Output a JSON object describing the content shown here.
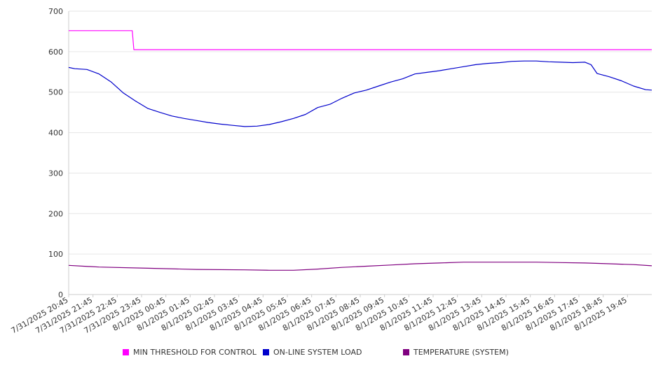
{
  "chart_data": {
    "type": "line",
    "ylim": [
      0,
      700
    ],
    "yticks": [
      0,
      100,
      200,
      300,
      400,
      500,
      600,
      700
    ],
    "x_range": [
      "7/31/2025 20:45",
      "8/1/2025 20:45"
    ],
    "grid": true,
    "legend_position": "bottom",
    "xtick_labels": [
      "7/31/2025 20:45",
      "7/31/2025 21:45",
      "7/31/2025 22:45",
      "7/31/2025 23:45",
      "8/1/2025 00:45",
      "8/1/2025 01:45",
      "8/1/2025 02:45",
      "8/1/2025 03:45",
      "8/1/2025 04:45",
      "8/1/2025 05:45",
      "8/1/2025 06:45",
      "8/1/2025 07:45",
      "8/1/2025 08:45",
      "8/1/2025 09:45",
      "8/1/2025 10:45",
      "8/1/2025 11:45",
      "8/1/2025 12:45",
      "8/1/2025 13:45",
      "8/1/2025 14:45",
      "8/1/2025 15:45",
      "8/1/2025 16:45",
      "8/1/2025 17:45",
      "8/1/2025 18:45",
      "8/1/2025 19:45"
    ],
    "series": [
      {
        "name": "MIN THRESHOLD FOR CONTROL",
        "color": "#ff00ff",
        "points": [
          [
            "7/31/2025 20:45",
            652
          ],
          [
            "7/31/2025 22:45",
            652
          ],
          [
            "7/31/2025 23:15",
            652
          ],
          [
            "7/31/2025 23:22",
            652
          ],
          [
            "7/31/2025 23:26",
            605
          ],
          [
            "8/1/2025 04:45",
            605
          ],
          [
            "8/1/2025 12:45",
            605
          ],
          [
            "8/1/2025 20:45",
            605
          ]
        ]
      },
      {
        "name": "ON-LINE SYSTEM LOAD",
        "color": "#0000cc",
        "points": [
          [
            "7/31/2025 20:45",
            561
          ],
          [
            "7/31/2025 21:00",
            558
          ],
          [
            "7/31/2025 21:30",
            556
          ],
          [
            "7/31/2025 22:00",
            545
          ],
          [
            "7/31/2025 22:30",
            525
          ],
          [
            "7/31/2025 23:00",
            498
          ],
          [
            "7/31/2025 23:30",
            478
          ],
          [
            "8/1/2025 00:00",
            460
          ],
          [
            "8/1/2025 00:30",
            450
          ],
          [
            "8/1/2025 01:00",
            441
          ],
          [
            "8/1/2025 01:30",
            435
          ],
          [
            "8/1/2025 02:00",
            430
          ],
          [
            "8/1/2025 02:30",
            425
          ],
          [
            "8/1/2025 03:00",
            421
          ],
          [
            "8/1/2025 03:30",
            418
          ],
          [
            "8/1/2025 04:00",
            415
          ],
          [
            "8/1/2025 04:30",
            416
          ],
          [
            "8/1/2025 05:00",
            420
          ],
          [
            "8/1/2025 05:30",
            427
          ],
          [
            "8/1/2025 06:00",
            435
          ],
          [
            "8/1/2025 06:30",
            445
          ],
          [
            "8/1/2025 07:00",
            462
          ],
          [
            "8/1/2025 07:30",
            470
          ],
          [
            "8/1/2025 08:00",
            485
          ],
          [
            "8/1/2025 08:30",
            498
          ],
          [
            "8/1/2025 09:00",
            505
          ],
          [
            "8/1/2025 09:30",
            515
          ],
          [
            "8/1/2025 10:00",
            525
          ],
          [
            "8/1/2025 10:30",
            533
          ],
          [
            "8/1/2025 11:00",
            545
          ],
          [
            "8/1/2025 11:30",
            549
          ],
          [
            "8/1/2025 12:00",
            553
          ],
          [
            "8/1/2025 12:30",
            558
          ],
          [
            "8/1/2025 13:00",
            563
          ],
          [
            "8/1/2025 13:30",
            568
          ],
          [
            "8/1/2025 14:00",
            571
          ],
          [
            "8/1/2025 14:30",
            573
          ],
          [
            "8/1/2025 15:00",
            576
          ],
          [
            "8/1/2025 15:30",
            577
          ],
          [
            "8/1/2025 16:00",
            577
          ],
          [
            "8/1/2025 16:30",
            575
          ],
          [
            "8/1/2025 17:00",
            574
          ],
          [
            "8/1/2025 17:30",
            573
          ],
          [
            "8/1/2025 18:00",
            574
          ],
          [
            "8/1/2025 18:15",
            568
          ],
          [
            "8/1/2025 18:30",
            546
          ],
          [
            "8/1/2025 19:00",
            538
          ],
          [
            "8/1/2025 19:30",
            528
          ],
          [
            "8/1/2025 20:00",
            515
          ],
          [
            "8/1/2025 20:30",
            506
          ],
          [
            "8/1/2025 20:45",
            505
          ]
        ]
      },
      {
        "name": "TEMPERATURE (SYSTEM)",
        "color": "#800080",
        "points": [
          [
            "7/31/2025 20:45",
            72
          ],
          [
            "7/31/2025 22:00",
            68
          ],
          [
            "8/1/2025 00:00",
            65
          ],
          [
            "8/1/2025 02:00",
            62
          ],
          [
            "8/1/2025 04:00",
            61
          ],
          [
            "8/1/2025 05:00",
            60
          ],
          [
            "8/1/2025 06:00",
            60
          ],
          [
            "8/1/2025 07:00",
            63
          ],
          [
            "8/1/2025 08:00",
            67
          ],
          [
            "8/1/2025 09:00",
            70
          ],
          [
            "8/1/2025 10:00",
            73
          ],
          [
            "8/1/2025 11:00",
            76
          ],
          [
            "8/1/2025 12:00",
            78
          ],
          [
            "8/1/2025 13:00",
            80
          ],
          [
            "8/1/2025 14:00",
            80
          ],
          [
            "8/1/2025 15:00",
            80
          ],
          [
            "8/1/2025 16:00",
            80
          ],
          [
            "8/1/2025 17:00",
            79
          ],
          [
            "8/1/2025 18:00",
            78
          ],
          [
            "8/1/2025 19:00",
            76
          ],
          [
            "8/1/2025 20:00",
            74
          ],
          [
            "8/1/2025 20:45",
            71
          ]
        ]
      }
    ]
  }
}
